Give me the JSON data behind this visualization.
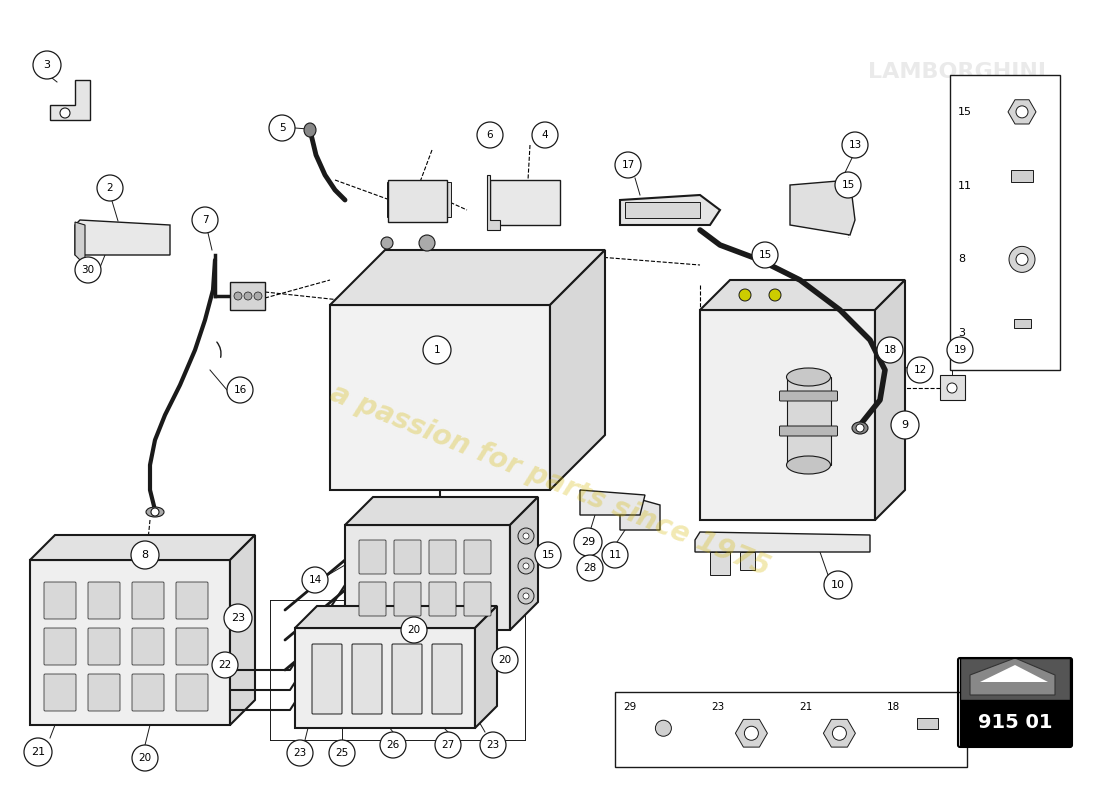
{
  "bg_color": "#ffffff",
  "lc": "#1a1a1a",
  "watermark_text": "a passion for parts since 1975",
  "watermark_color": "#d4b800",
  "watermark_alpha": 0.3,
  "part_box_num": "915 01",
  "figsize": [
    11.0,
    8.0
  ],
  "dpi": 100,
  "callout_r": 0.018,
  "callout_fontsize": 7.5
}
